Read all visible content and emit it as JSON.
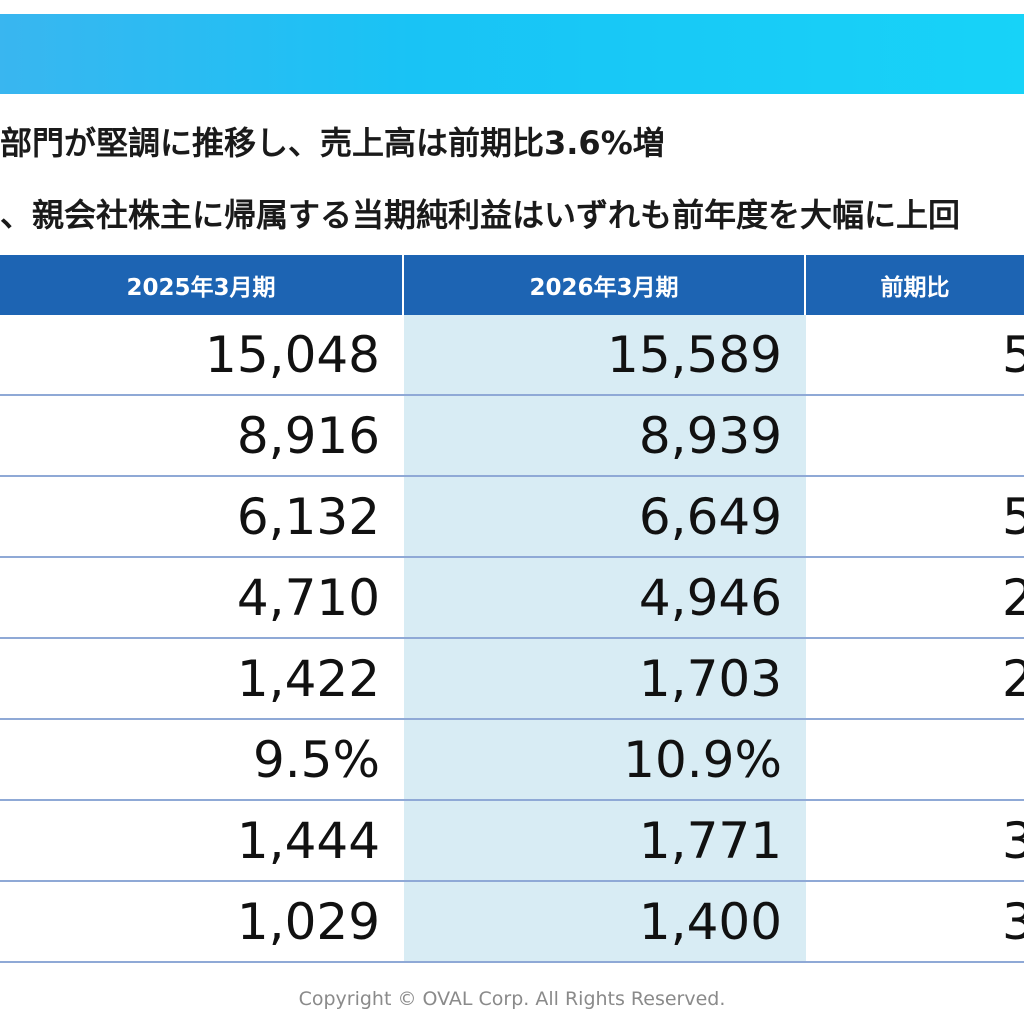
{
  "headlines": {
    "line1": "部門が堅調に推移し、売上高は前期比3.6%増",
    "line2": "、親会社株主に帰属する当期純利益はいずれも前年度を大幅に上回"
  },
  "table": {
    "headers": [
      "2025年3月期",
      "2026年3月期",
      "前期比"
    ],
    "rows": [
      {
        "fy2025": "15,048",
        "fy2026": "15,589",
        "yoy": "5"
      },
      {
        "fy2025": "8,916",
        "fy2026": "8,939",
        "yoy": ""
      },
      {
        "fy2025": "6,132",
        "fy2026": "6,649",
        "yoy": "5"
      },
      {
        "fy2025": "4,710",
        "fy2026": "4,946",
        "yoy": "2"
      },
      {
        "fy2025": "1,422",
        "fy2026": "1,703",
        "yoy": "2"
      },
      {
        "fy2025": "9.5%",
        "fy2026": "10.9%",
        "yoy": ""
      },
      {
        "fy2025": "1,444",
        "fy2026": "1,771",
        "yoy": "3"
      },
      {
        "fy2025": "1,029",
        "fy2026": "1,400",
        "yoy": "3"
      }
    ]
  },
  "footer": {
    "copyright": "Copyright © OVAL Corp. All Rights Reserved."
  },
  "colors": {
    "banner": "#19c3f5",
    "header_bg": "#1d64b3",
    "highlight_column": "#d8ecf4",
    "row_divider": "#8fa9d6"
  }
}
